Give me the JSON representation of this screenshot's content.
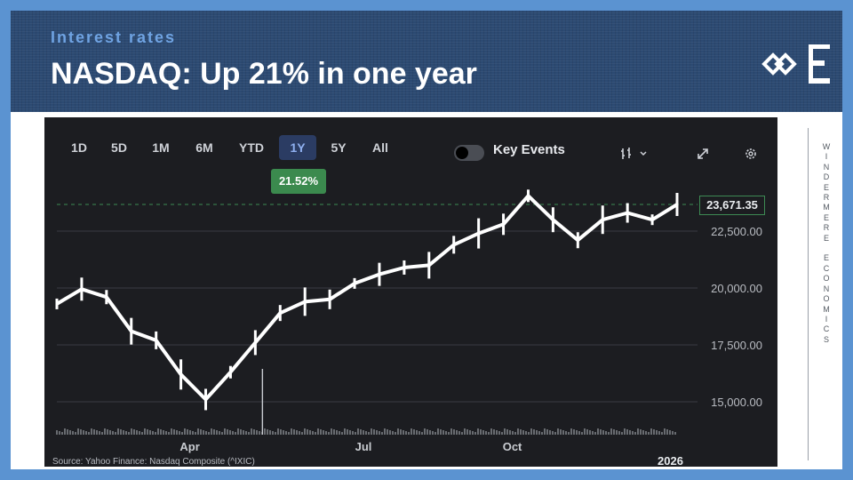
{
  "header": {
    "subtitle": "Interest rates",
    "title": "NASDAQ: Up 21% in one year"
  },
  "toolbar": {
    "ranges": [
      "1D",
      "5D",
      "1M",
      "6M",
      "YTD",
      "1Y",
      "5Y",
      "All"
    ],
    "active_range": "1Y",
    "key_events_label": "Key Events",
    "change_badge": "21.52%"
  },
  "chart_data": {
    "type": "line",
    "title": "",
    "xlabel": "",
    "ylabel": "",
    "x_tick_labels": [
      "Apr",
      "Jul",
      "Oct"
    ],
    "year_label": "2026",
    "y_ticks": [
      15000,
      17500,
      20000,
      22500
    ],
    "y_tick_labels": [
      "15,000.00",
      "17,500.00",
      "20,000.00",
      "22,500.00"
    ],
    "ylim": [
      14200,
      24700
    ],
    "current_value": 23671.35,
    "current_value_label": "23,671.35",
    "grid": true,
    "series": [
      {
        "x": [
          "Jan",
          "Feb",
          "Feb",
          "Mar",
          "Mar",
          "Apr",
          "Apr",
          "Apr",
          "May",
          "May",
          "Jun",
          "Jun",
          "Jul",
          "Jul",
          "Aug",
          "Aug",
          "Sep",
          "Sep",
          "Oct",
          "Oct",
          "Nov",
          "Nov",
          "Nov",
          "Dec",
          "Dec",
          "Jan"
        ],
        "values": [
          19300,
          19950,
          19600,
          18100,
          17700,
          16200,
          15100,
          16300,
          17600,
          18900,
          19400,
          19500,
          20200,
          20600,
          20900,
          21000,
          21900,
          22400,
          22800,
          24050,
          23000,
          22100,
          23000,
          23300,
          23000,
          23671.35
        ]
      }
    ],
    "volume_spike_month": "May"
  },
  "source": "Source: Yahoo Finance: Nasdaq Composite (^IXIC)",
  "sidebar_text": "WINDERMERE ECONOMICS",
  "colors": {
    "background_border": "#5b93d1",
    "header": "#2c4a72",
    "subtitle": "#6fa3e2",
    "chart_bg": "#1c1d21",
    "badge": "#3b8a4e",
    "line": "#ffffff"
  },
  "icons": [
    "toggle-switch",
    "chart-type-icon",
    "chevron-down-icon",
    "expand-icon",
    "gear-icon",
    "windermere-logo"
  ]
}
